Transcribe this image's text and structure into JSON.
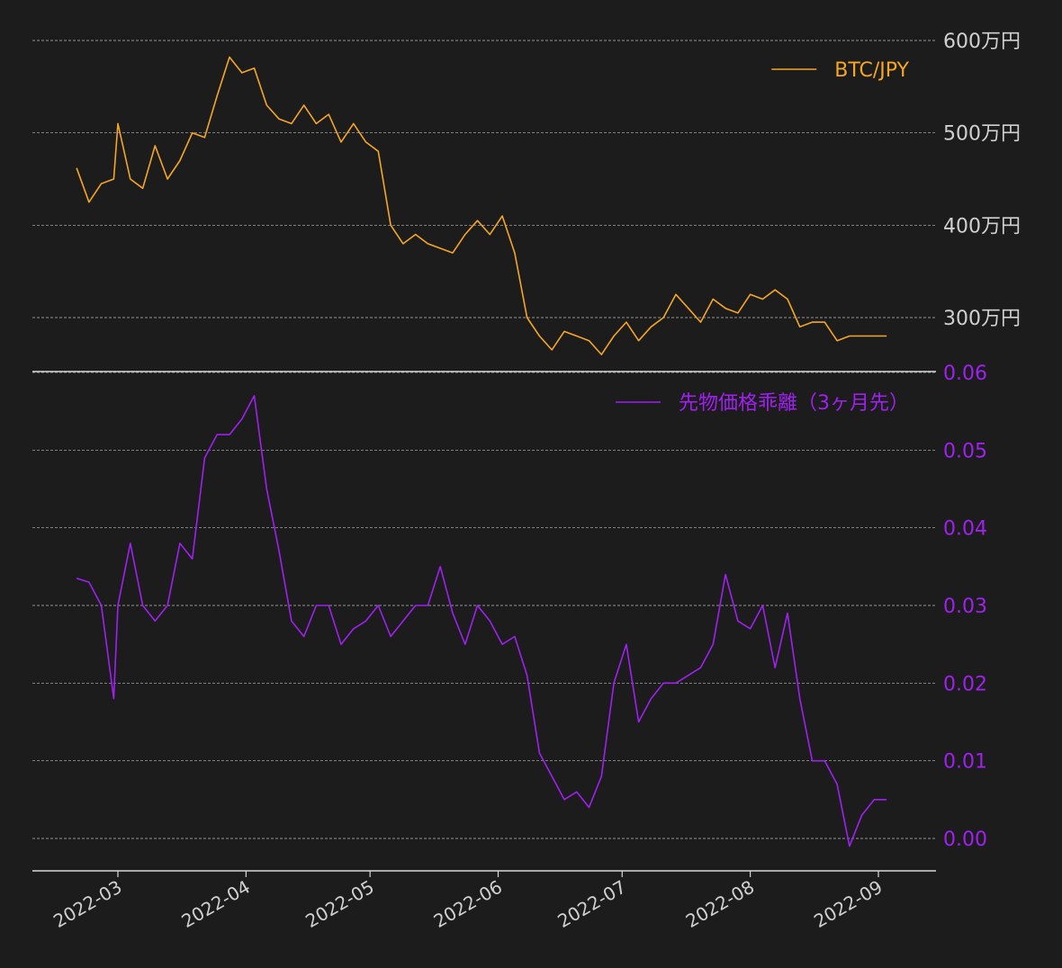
{
  "chart_data": [
    {
      "type": "line",
      "title": "",
      "xlabel": "",
      "ylabel": "",
      "ylim": [
        2600000,
        6000000
      ],
      "yticks": [
        3000000,
        4000000,
        5000000,
        6000000
      ],
      "ytick_labels": [
        "300万円",
        "400万円",
        "500万円",
        "600万円"
      ],
      "grid": true,
      "legend_position": "top-right",
      "color": "#f5a623",
      "series": [
        {
          "name": "BTC/JPY",
          "x": [
            "2022-02-19",
            "2022-02-22",
            "2022-02-25",
            "2022-02-28",
            "2022-03-01",
            "2022-03-04",
            "2022-03-07",
            "2022-03-10",
            "2022-03-13",
            "2022-03-16",
            "2022-03-19",
            "2022-03-22",
            "2022-03-25",
            "2022-03-28",
            "2022-03-31",
            "2022-04-03",
            "2022-04-06",
            "2022-04-09",
            "2022-04-12",
            "2022-04-15",
            "2022-04-18",
            "2022-04-21",
            "2022-04-24",
            "2022-04-27",
            "2022-04-30",
            "2022-05-03",
            "2022-05-06",
            "2022-05-09",
            "2022-05-12",
            "2022-05-15",
            "2022-05-18",
            "2022-05-21",
            "2022-05-24",
            "2022-05-27",
            "2022-05-30",
            "2022-06-02",
            "2022-06-05",
            "2022-06-08",
            "2022-06-11",
            "2022-06-14",
            "2022-06-17",
            "2022-06-20",
            "2022-06-23",
            "2022-06-26",
            "2022-06-29",
            "2022-07-02",
            "2022-07-05",
            "2022-07-08",
            "2022-07-11",
            "2022-07-14",
            "2022-07-17",
            "2022-07-20",
            "2022-07-23",
            "2022-07-26",
            "2022-07-29",
            "2022-08-01",
            "2022-08-04",
            "2022-08-07",
            "2022-08-10",
            "2022-08-13",
            "2022-08-16",
            "2022-08-19",
            "2022-08-22",
            "2022-08-25",
            "2022-08-28",
            "2022-08-31",
            "2022-09-03"
          ],
          "values": [
            4620000,
            4250000,
            4450000,
            4500000,
            5100000,
            4500000,
            4400000,
            4860000,
            4500000,
            4700000,
            5000000,
            4950000,
            5400000,
            5820000,
            5650000,
            5700000,
            5300000,
            5150000,
            5100000,
            5300000,
            5100000,
            5200000,
            4900000,
            5100000,
            4900000,
            4800000,
            4000000,
            3800000,
            3900000,
            3800000,
            3750000,
            3700000,
            3900000,
            4050000,
            3900000,
            4100000,
            3700000,
            3000000,
            2800000,
            2650000,
            2850000,
            2800000,
            2750000,
            2600000,
            2800000,
            2950000,
            2750000,
            2900000,
            3000000,
            3250000,
            3100000,
            2950000,
            3200000,
            3100000,
            3050000,
            3250000,
            3200000,
            3300000,
            3200000,
            2900000,
            2950000,
            2950000,
            2750000,
            2800000,
            2800000,
            2800000,
            2800000
          ]
        }
      ]
    },
    {
      "type": "line",
      "title": "",
      "xlabel": "",
      "ylabel": "",
      "ylim": [
        -0.004,
        0.06
      ],
      "yticks": [
        0.0,
        0.01,
        0.02,
        0.03,
        0.04,
        0.05,
        0.06
      ],
      "ytick_labels": [
        "0.00",
        "0.01",
        "0.02",
        "0.03",
        "0.04",
        "0.05",
        "0.06"
      ],
      "grid": true,
      "legend_position": "top-right",
      "color": "#a020f0",
      "x_ticks": [
        "2022-03",
        "2022-04",
        "2022-05",
        "2022-06",
        "2022-07",
        "2022-08",
        "2022-09"
      ],
      "series": [
        {
          "name": "先物価格乖離（3ヶ月先）",
          "x": [
            "2022-02-19",
            "2022-02-22",
            "2022-02-25",
            "2022-02-28",
            "2022-03-01",
            "2022-03-04",
            "2022-03-07",
            "2022-03-10",
            "2022-03-13",
            "2022-03-16",
            "2022-03-19",
            "2022-03-22",
            "2022-03-25",
            "2022-03-28",
            "2022-03-31",
            "2022-04-03",
            "2022-04-06",
            "2022-04-09",
            "2022-04-12",
            "2022-04-15",
            "2022-04-18",
            "2022-04-21",
            "2022-04-24",
            "2022-04-27",
            "2022-04-30",
            "2022-05-03",
            "2022-05-06",
            "2022-05-09",
            "2022-05-12",
            "2022-05-15",
            "2022-05-18",
            "2022-05-21",
            "2022-05-24",
            "2022-05-27",
            "2022-05-30",
            "2022-06-02",
            "2022-06-05",
            "2022-06-08",
            "2022-06-11",
            "2022-06-14",
            "2022-06-17",
            "2022-06-20",
            "2022-06-23",
            "2022-06-26",
            "2022-06-29",
            "2022-07-02",
            "2022-07-05",
            "2022-07-08",
            "2022-07-11",
            "2022-07-14",
            "2022-07-17",
            "2022-07-20",
            "2022-07-23",
            "2022-07-26",
            "2022-07-29",
            "2022-08-01",
            "2022-08-04",
            "2022-08-07",
            "2022-08-10",
            "2022-08-13",
            "2022-08-16",
            "2022-08-19",
            "2022-08-22",
            "2022-08-25",
            "2022-08-28",
            "2022-08-31",
            "2022-09-03"
          ],
          "values": [
            0.0335,
            0.033,
            0.03,
            0.018,
            0.03,
            0.038,
            0.03,
            0.028,
            0.03,
            0.038,
            0.036,
            0.049,
            0.052,
            0.052,
            0.054,
            0.057,
            0.045,
            0.037,
            0.028,
            0.026,
            0.03,
            0.03,
            0.025,
            0.027,
            0.028,
            0.03,
            0.026,
            0.028,
            0.03,
            0.03,
            0.035,
            0.029,
            0.025,
            0.03,
            0.028,
            0.025,
            0.026,
            0.021,
            0.011,
            0.008,
            0.005,
            0.006,
            0.004,
            0.008,
            0.02,
            0.025,
            0.015,
            0.018,
            0.02,
            0.02,
            0.021,
            0.022,
            0.025,
            0.034,
            0.028,
            0.027,
            0.03,
            0.022,
            0.029,
            0.018,
            0.01,
            0.01,
            0.007,
            -0.001,
            0.003,
            0.005,
            0.005
          ]
        }
      ]
    }
  ]
}
